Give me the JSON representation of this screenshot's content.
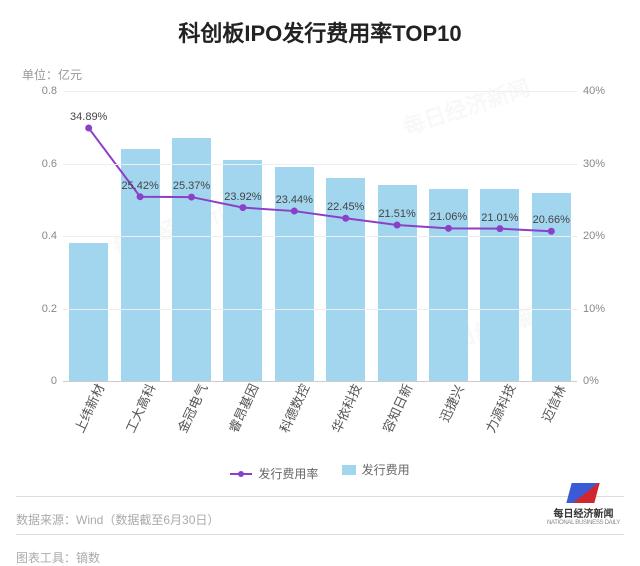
{
  "title": "科创板IPO发行费用率TOP10",
  "unit_label": "单位：亿元",
  "chart": {
    "type": "bar-line-combo",
    "categories": [
      "上纬新材",
      "工大高科",
      "金冠电气",
      "睿昂基因",
      "科德数控",
      "华依科技",
      "容知日新",
      "迅捷兴",
      "力源科技",
      "迈信林"
    ],
    "bars": {
      "label": "发行费用",
      "color": "#a2d6ee",
      "values": [
        0.38,
        0.64,
        0.67,
        0.61,
        0.59,
        0.56,
        0.54,
        0.53,
        0.53,
        0.52
      ],
      "axis": "left"
    },
    "line": {
      "label": "发行费用率",
      "color": "#8c3fc7",
      "point_color": "#8c3fc7",
      "values": [
        34.89,
        25.42,
        25.37,
        23.92,
        23.44,
        22.45,
        21.51,
        21.06,
        21.01,
        20.66
      ],
      "value_labels": [
        "34.89%",
        "25.42%",
        "25.37%",
        "23.92%",
        "23.44%",
        "22.45%",
        "21.51%",
        "21.06%",
        "21.01%",
        "20.66%"
      ],
      "axis": "right",
      "marker_size": 5,
      "line_width": 2
    },
    "left_axis": {
      "min": 0,
      "max": 0.8,
      "step": 0.2,
      "ticks": [
        "0",
        "0.2",
        "0.4",
        "0.6",
        "0.8"
      ]
    },
    "right_axis": {
      "min": 0,
      "max": 40,
      "step": 10,
      "ticks": [
        "0%",
        "10%",
        "20%",
        "30%",
        "40%"
      ]
    },
    "grid_color": "#eeeeee",
    "background_color": "#ffffff",
    "xlabel_rotation": -65,
    "xlabel_fontsize": 13,
    "tick_fontsize": 11
  },
  "legend": {
    "line_label": "发行费用率",
    "bar_label": "发行费用"
  },
  "footer": {
    "source": "数据来源：Wind（数据截至6月30日）",
    "tool": "图表工具：镝数"
  },
  "logo": {
    "brand": "每日经济新闻",
    "sub": "NATIONAL BUSINESS DAILY"
  },
  "watermark_text": "每日经济新闻"
}
